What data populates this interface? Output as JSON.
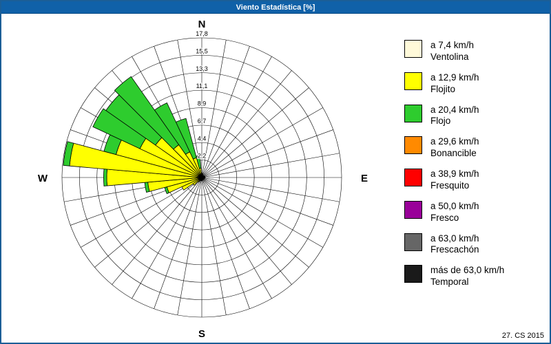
{
  "header": {
    "title": "Viento Estadística [%]"
  },
  "footer": {
    "text": "27. CS 2015"
  },
  "chrome_colors": {
    "titlebar_bg": "#1061A8",
    "window_border": "#1B5E97"
  },
  "compass": {
    "north": "N",
    "east": "E",
    "south": "S",
    "west": "W"
  },
  "legend": {
    "items": [
      {
        "color": "#FFF9D9",
        "speed": "a 7,4 km/h",
        "name": "Ventolina"
      },
      {
        "color": "#FFFF00",
        "speed": "a 12,9 km/h",
        "name": "Flojito"
      },
      {
        "color": "#2ECC2E",
        "speed": "a 20,4 km/h",
        "name": "Flojo"
      },
      {
        "color": "#FF8A00",
        "speed": "a 29,6 km/h",
        "name": "Bonancible"
      },
      {
        "color": "#FF0000",
        "speed": "a 38,9 km/h",
        "name": "Fresquito"
      },
      {
        "color": "#990099",
        "speed": "a 50,0 km/h",
        "name": "Fresco"
      },
      {
        "color": "#666666",
        "speed": "a 63,0 km/h",
        "name": "Frescachón"
      },
      {
        "color": "#1A1A1A",
        "speed": "más de 63,0 km/h",
        "name": "Temporal"
      }
    ]
  },
  "chart_data": {
    "type": "windrose",
    "title": "Viento Estadística [%]",
    "units": "%",
    "max_value": 17.8,
    "ring_values": [
      2.2,
      4.4,
      6.7,
      8.9,
      11.1,
      13.3,
      15.5,
      17.8
    ],
    "ring_labels": [
      "2,2",
      "4,4",
      "6,7",
      "8,9",
      "11,1",
      "13,3",
      "15,5",
      "17,8"
    ],
    "sector_width_deg": 10,
    "directions_deg": [
      0,
      10,
      20,
      30,
      40,
      50,
      60,
      70,
      80,
      90,
      100,
      110,
      120,
      130,
      140,
      150,
      160,
      170,
      180,
      190,
      200,
      210,
      220,
      230,
      240,
      250,
      260,
      270,
      280,
      290,
      300,
      310,
      320,
      330,
      340,
      350
    ],
    "series": [
      {
        "name": "Ventolina",
        "color": "#FFF9D9",
        "values": [
          0.2,
          0.2,
          0.1,
          0.1,
          0.1,
          0.1,
          0.1,
          0.1,
          0.1,
          0.1,
          0.1,
          0.1,
          0.1,
          0.1,
          0.1,
          0.1,
          0.1,
          0.1,
          0.1,
          0.1,
          0.1,
          0.1,
          0.1,
          0.2,
          0.2,
          0.2,
          0.3,
          0.3,
          0.3,
          0.3,
          0.3,
          0.3,
          0.2,
          0.2,
          0.2,
          0.2
        ]
      },
      {
        "name": "Flojito",
        "color": "#FFFF00",
        "values": [
          0.4,
          0.3,
          0.2,
          0.2,
          0.2,
          0.2,
          0.2,
          0.3,
          0.3,
          0.3,
          0.3,
          0.2,
          0.2,
          0.2,
          0.2,
          0.2,
          0.2,
          0.2,
          0.3,
          0.3,
          0.3,
          0.4,
          0.6,
          1.2,
          2.6,
          4.4,
          6.6,
          11.8,
          16.6,
          11.0,
          8.4,
          6.9,
          4.9,
          3.4,
          2.4,
          1.0
        ]
      },
      {
        "name": "Flojo",
        "color": "#2ECC2E",
        "values": [
          0,
          0,
          0,
          0,
          0,
          0,
          0,
          0,
          0,
          0,
          0,
          0,
          0,
          0,
          0,
          0,
          0,
          0,
          0,
          0,
          0,
          0,
          0,
          0,
          0,
          0.3,
          0.4,
          0.4,
          0.8,
          1.6,
          6.6,
          7.7,
          10.6,
          6.9,
          5.2,
          1.6
        ]
      }
    ]
  }
}
